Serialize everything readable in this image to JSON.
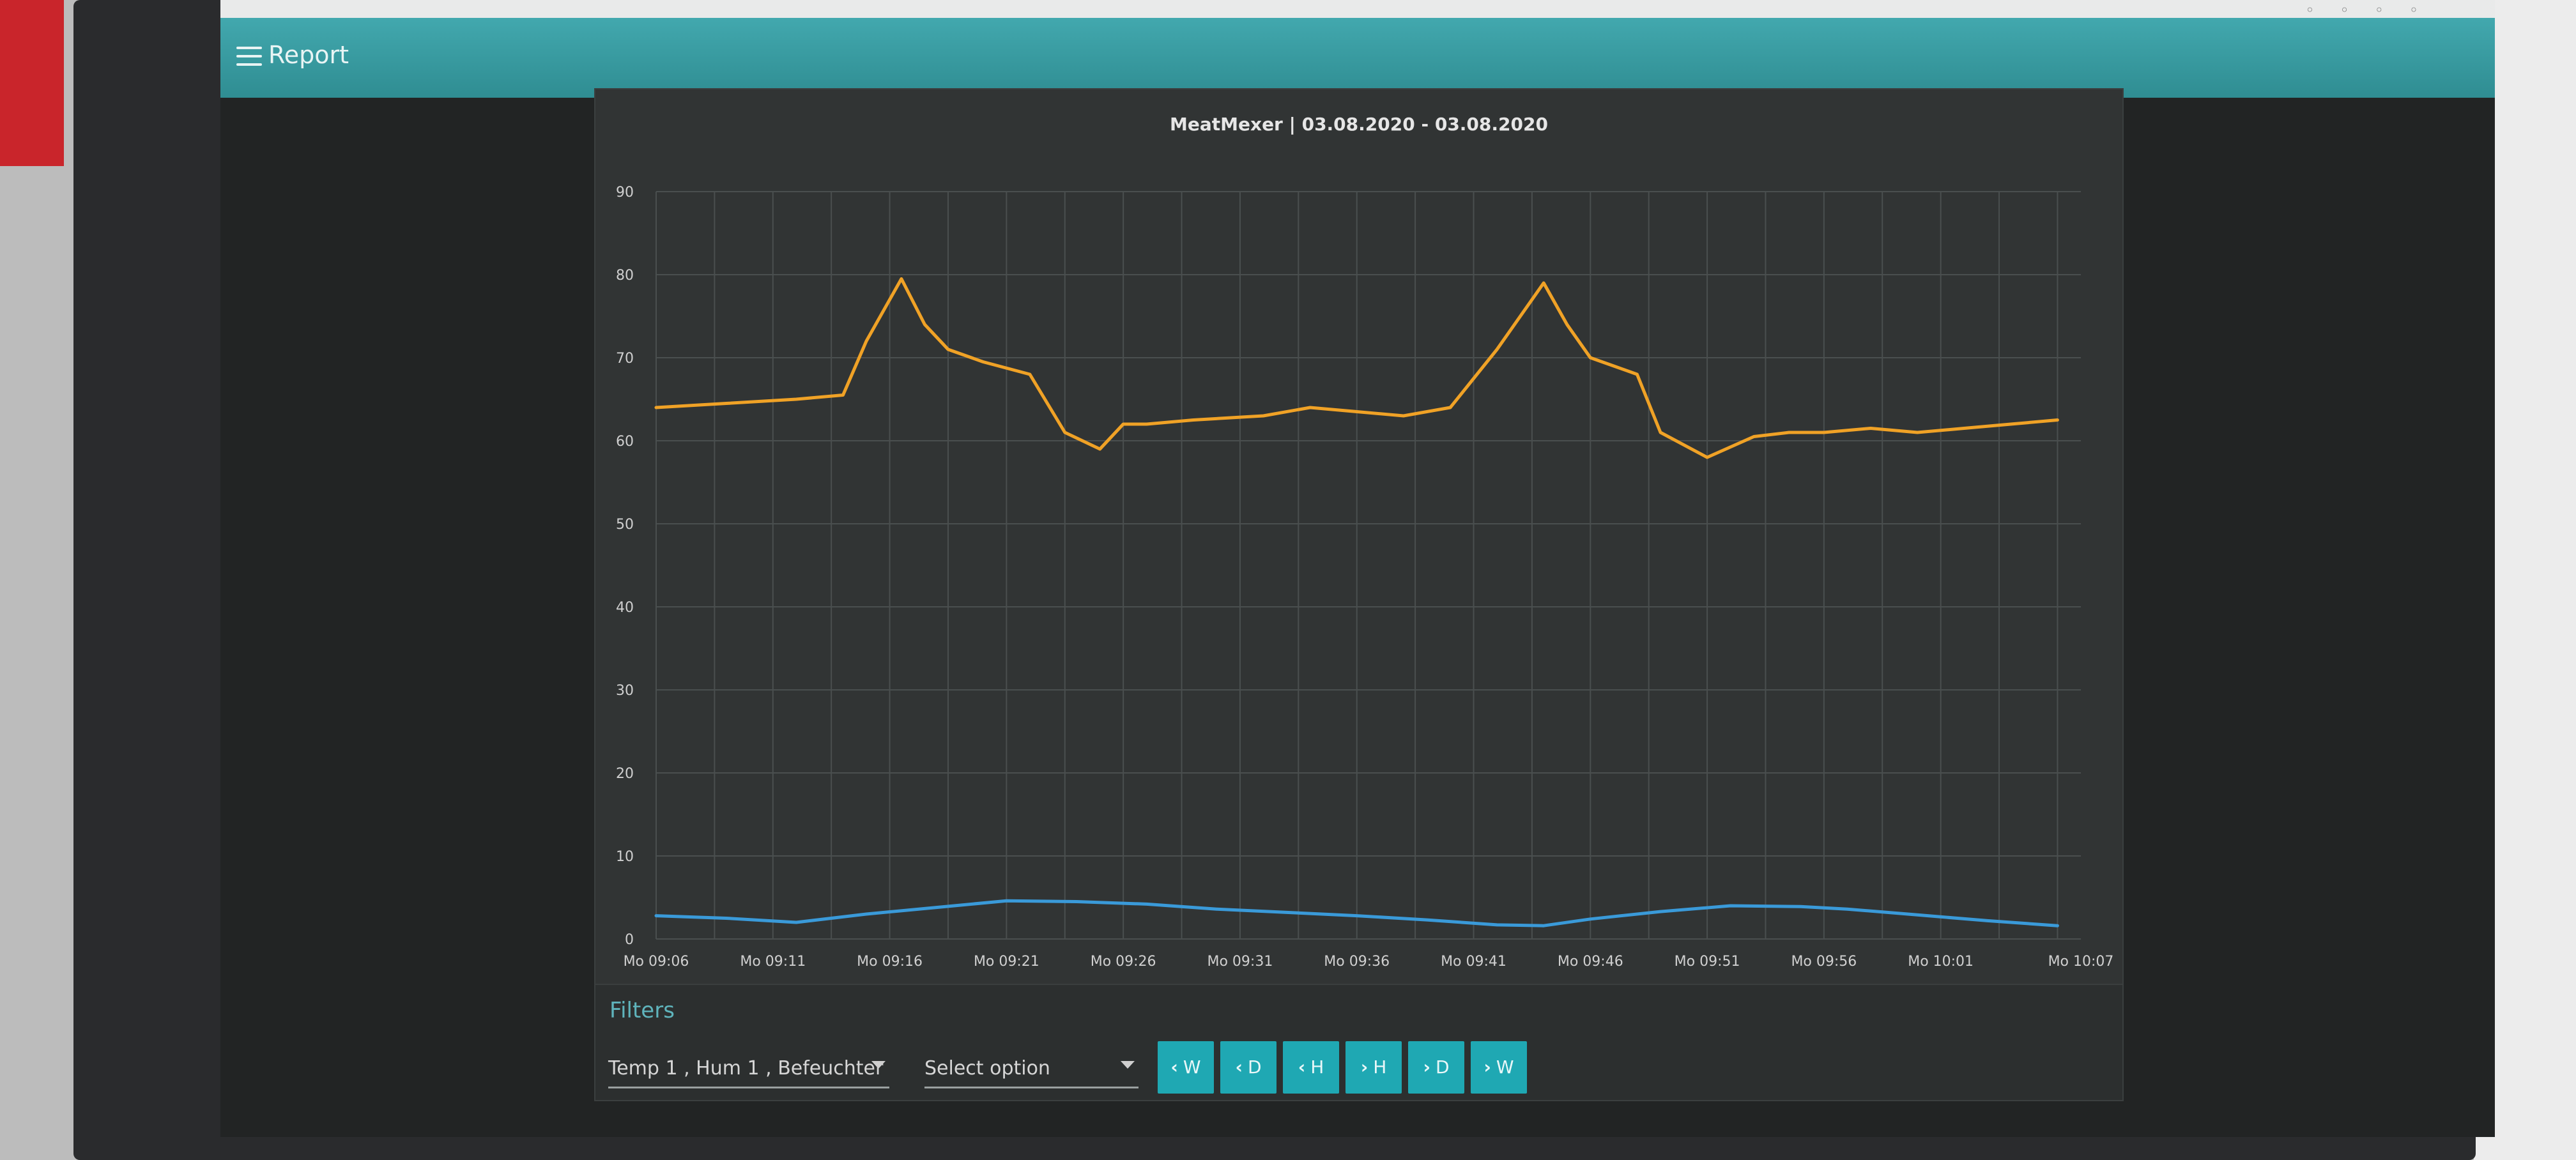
{
  "app": {
    "title": "Report",
    "menu_icon": "hamburger-menu-icon"
  },
  "chart_data": {
    "type": "line",
    "title": "MeatMexer | 03.08.2020 - 03.08.2020",
    "xlabel": "",
    "ylabel": "",
    "ylim": [
      0,
      90
    ],
    "yticks": [
      "0",
      "10",
      "20",
      "30",
      "40",
      "50",
      "60",
      "70",
      "80",
      "90"
    ],
    "xlim": [
      0,
      61
    ],
    "xticks": [
      {
        "t": 0,
        "label": "Mo 09:06"
      },
      {
        "t": 5,
        "label": "Mo 09:11"
      },
      {
        "t": 10,
        "label": "Mo 09:16"
      },
      {
        "t": 15,
        "label": "Mo 09:21"
      },
      {
        "t": 20,
        "label": "Mo 09:26"
      },
      {
        "t": 25,
        "label": "Mo 09:31"
      },
      {
        "t": 30,
        "label": "Mo 09:36"
      },
      {
        "t": 35,
        "label": "Mo 09:41"
      },
      {
        "t": 40,
        "label": "Mo 09:46"
      },
      {
        "t": 45,
        "label": "Mo 09:51"
      },
      {
        "t": 50,
        "label": "Mo 09:56"
      },
      {
        "t": 55,
        "label": "Mo 10:01"
      },
      {
        "t": 61,
        "label": "Mo 10:07"
      }
    ],
    "grid": true,
    "series": [
      {
        "color": "#f0a226",
        "x": [
          0,
          3,
          6,
          8,
          9,
          10.5,
          11.5,
          12.5,
          14,
          16,
          17.5,
          19,
          20,
          21,
          23,
          26,
          28,
          30,
          32,
          34,
          36,
          38,
          39,
          40,
          41,
          42,
          43,
          45,
          47,
          48.5,
          50,
          52,
          54,
          56,
          58,
          60
        ],
        "y": [
          64,
          64.5,
          65,
          65.5,
          72,
          79.5,
          74,
          71,
          69.5,
          68,
          61,
          59,
          62,
          62,
          62.5,
          63,
          64,
          63.5,
          63,
          64,
          71,
          79,
          74,
          70,
          69,
          68,
          61,
          58,
          60.5,
          61,
          61,
          61.5,
          61,
          61.5,
          62,
          62.5
        ]
      },
      {
        "color": "#3a9ad9",
        "x": [
          0,
          3,
          6,
          9,
          12,
          15,
          18,
          21,
          24,
          27,
          30,
          33,
          36,
          38,
          40,
          43,
          46,
          49,
          51,
          54,
          57,
          60
        ],
        "y": [
          2.8,
          2.5,
          2.0,
          3.0,
          3.8,
          4.6,
          4.5,
          4.2,
          3.6,
          3.2,
          2.8,
          2.3,
          1.7,
          1.6,
          2.4,
          3.3,
          4.0,
          3.9,
          3.6,
          2.9,
          2.2,
          1.6
        ]
      }
    ]
  },
  "filters": {
    "label": "Filters",
    "sensor_select": "Temp 1 , Hum 1 , Befeuchter",
    "option_select": "Select option",
    "nav_buttons": [
      {
        "arrow": "‹",
        "label": "W"
      },
      {
        "arrow": "‹",
        "label": "D"
      },
      {
        "arrow": "‹",
        "label": "H"
      },
      {
        "arrow": "›",
        "label": "H"
      },
      {
        "arrow": "›",
        "label": "D"
      },
      {
        "arrow": "›",
        "label": "W"
      }
    ]
  },
  "colors": {
    "accent": "#2f8d92",
    "button": "#1fa8b3",
    "filter_label": "#5fb4bc"
  }
}
